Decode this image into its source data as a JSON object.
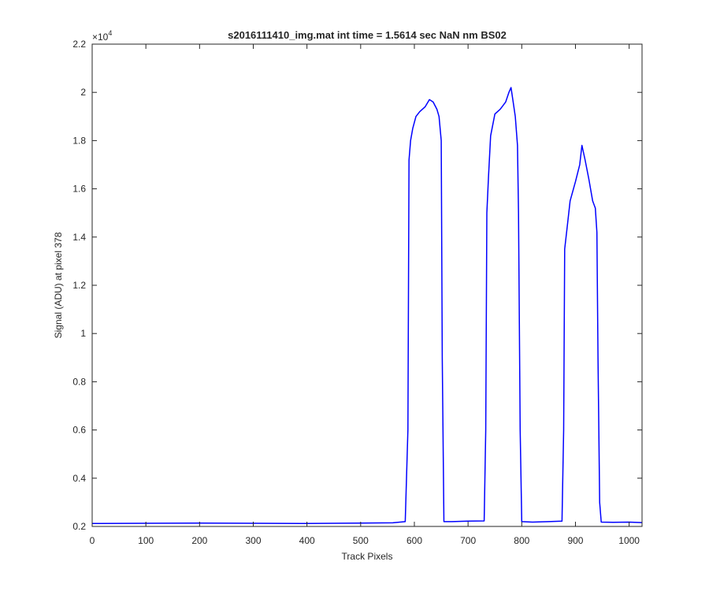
{
  "chart_data": {
    "type": "line",
    "title": "s2016111410_img.mat int time = 1.5614 sec  NaN nm BS02",
    "xlabel": "Track Pixels",
    "ylabel": "Signal (ADU) at pixel 378",
    "xlim": [
      0,
      1024
    ],
    "ylim": [
      0.2,
      2.2
    ],
    "y_exponent_label": "×10",
    "y_exponent_power": "4",
    "x_ticks": [
      "0",
      "100",
      "200",
      "300",
      "400",
      "500",
      "600",
      "700",
      "800",
      "900",
      "1000"
    ],
    "y_ticks": [
      "0.2",
      "0.4",
      "0.6",
      "0.8",
      "1",
      "1.2",
      "1.4",
      "1.6",
      "1.8",
      "2",
      "2.2"
    ],
    "grid": false,
    "line_color": "#0000ff",
    "series": [
      {
        "x": [
          0,
          100,
          200,
          300,
          400,
          500,
          560,
          583,
          588,
          590,
          593,
          597,
          603,
          610,
          620,
          628,
          635,
          642,
          646,
          650,
          652,
          655,
          670,
          700,
          730,
          733,
          735,
          738,
          742,
          750,
          760,
          770,
          776,
          780,
          784,
          788,
          792,
          794,
          797,
          800,
          820,
          850,
          875,
          878,
          880,
          884,
          890,
          900,
          908,
          912,
          918,
          925,
          932,
          937,
          940,
          942,
          945,
          948,
          970,
          1000,
          1024
        ],
        "y": [
          0.212,
          0.213,
          0.214,
          0.213,
          0.212,
          0.214,
          0.215,
          0.22,
          0.6,
          1.72,
          1.8,
          1.85,
          1.9,
          1.92,
          1.94,
          1.97,
          1.96,
          1.93,
          1.9,
          1.8,
          0.9,
          0.22,
          0.22,
          0.222,
          0.223,
          0.6,
          1.5,
          1.65,
          1.82,
          1.91,
          1.93,
          1.96,
          2.0,
          2.02,
          1.96,
          1.9,
          1.78,
          1.5,
          0.6,
          0.22,
          0.218,
          0.22,
          0.222,
          0.6,
          1.35,
          1.43,
          1.55,
          1.63,
          1.7,
          1.78,
          1.72,
          1.64,
          1.55,
          1.52,
          1.42,
          0.9,
          0.3,
          0.218,
          0.217,
          0.218,
          0.216
        ]
      }
    ]
  }
}
